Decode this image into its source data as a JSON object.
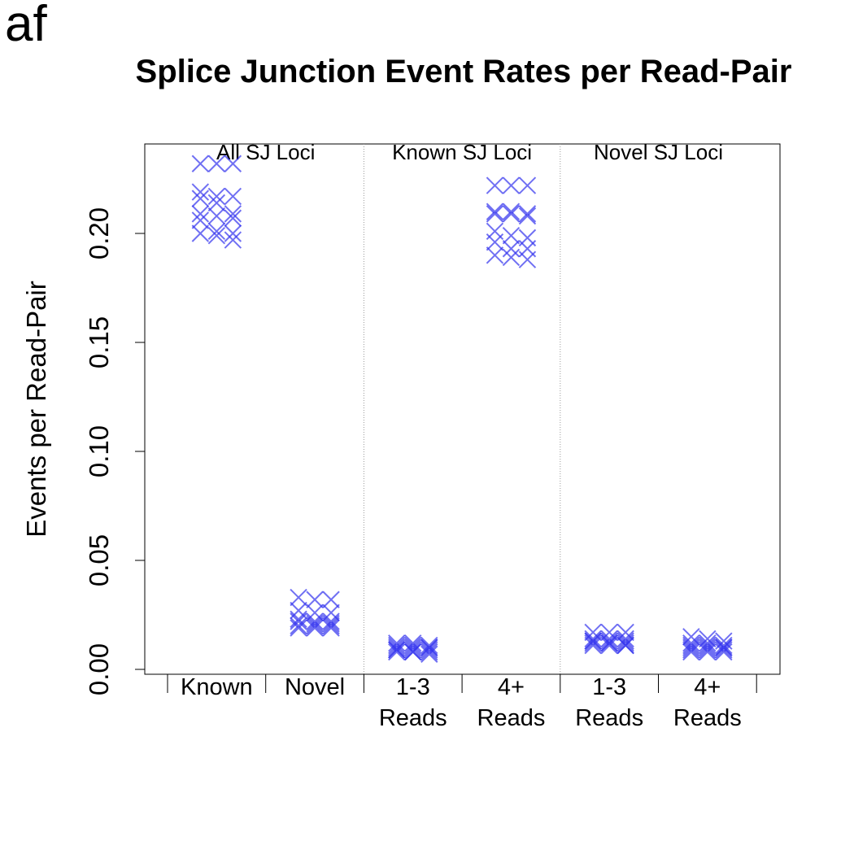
{
  "panel_label": "af",
  "chart_data": {
    "type": "scatter",
    "title": "Splice Junction Event Rates per Read-Pair",
    "ylabel": "Events per Read-Pair",
    "xlabel": "",
    "ylim": [
      0,
      0.24
    ],
    "y_ticks": [
      "0.00",
      "0.05",
      "0.10",
      "0.15",
      "0.20"
    ],
    "y_tick_values": [
      0,
      0.05,
      0.1,
      0.15,
      0.2
    ],
    "marker": "x",
    "color": "#3333ee",
    "groups": [
      {
        "name": "All SJ Loci",
        "categories": [
          "Known",
          "Novel"
        ]
      },
      {
        "name": "Known SJ Loci",
        "categories": [
          "1-3 Reads",
          "4+ Reads"
        ]
      },
      {
        "name": "Novel SJ Loci",
        "categories": [
          "1-3 Reads",
          "4+ Reads"
        ]
      }
    ],
    "category_labels": [
      [
        "Known"
      ],
      [
        "Novel"
      ],
      [
        "1-3",
        "Reads"
      ],
      [
        "4+",
        "Reads"
      ],
      [
        "1-3",
        "Reads"
      ],
      [
        "4+",
        "Reads"
      ]
    ],
    "series": [
      {
        "category": "Known",
        "values": [
          0.232,
          0.232,
          0.232,
          0.219,
          0.217,
          0.217,
          0.216,
          0.214,
          0.209,
          0.209,
          0.208,
          0.207,
          0.206,
          0.201,
          0.2,
          0.2,
          0.199,
          0.197
        ]
      },
      {
        "category": "Novel",
        "values": [
          0.033,
          0.032,
          0.032,
          0.027,
          0.026,
          0.026,
          0.023,
          0.022,
          0.022,
          0.022,
          0.021,
          0.021,
          0.02,
          0.02,
          0.02,
          0.019,
          0.019,
          0.019
        ]
      },
      {
        "category": "Known 1-3 Reads",
        "values": [
          0.012,
          0.012,
          0.011,
          0.011,
          0.011,
          0.01,
          0.01,
          0.01,
          0.01,
          0.009,
          0.009,
          0.009,
          0.009,
          0.008,
          0.008,
          0.008,
          0.008,
          0.007
        ]
      },
      {
        "category": "Known 4+ Reads",
        "values": [
          0.222,
          0.222,
          0.222,
          0.21,
          0.21,
          0.209,
          0.209,
          0.209,
          0.208,
          0.201,
          0.199,
          0.198,
          0.196,
          0.193,
          0.193,
          0.19,
          0.189,
          0.188
        ]
      },
      {
        "category": "Novel 1-3 Reads",
        "values": [
          0.017,
          0.017,
          0.017,
          0.014,
          0.014,
          0.014,
          0.013,
          0.013,
          0.013,
          0.013,
          0.012,
          0.012,
          0.012,
          0.012,
          0.011,
          0.011,
          0.011,
          0.011
        ]
      },
      {
        "category": "Novel 4+ Reads",
        "values": [
          0.015,
          0.014,
          0.013,
          0.012,
          0.012,
          0.011,
          0.011,
          0.011,
          0.01,
          0.01,
          0.01,
          0.01,
          0.009,
          0.009,
          0.009,
          0.008,
          0.008,
          0.008
        ]
      }
    ],
    "grid": false,
    "legend": "none"
  }
}
